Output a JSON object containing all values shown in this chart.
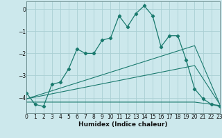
{
  "xlabel": "Humidex (Indice chaleur)",
  "ylabel": "",
  "background_color": "#cce8ec",
  "grid_color": "#aacfd4",
  "line_color": "#1a7a6e",
  "xlim": [
    0,
    23
  ],
  "ylim": [
    -4.7,
    0.35
  ],
  "yticks": [
    0,
    -1,
    -2,
    -3,
    -4
  ],
  "xticks": [
    0,
    1,
    2,
    3,
    4,
    5,
    6,
    7,
    8,
    9,
    10,
    11,
    12,
    13,
    14,
    15,
    16,
    17,
    18,
    19,
    20,
    21,
    22,
    23
  ],
  "series1_x": [
    0,
    1,
    2,
    3,
    4,
    5,
    6,
    7,
    8,
    9,
    10,
    11,
    12,
    13,
    14,
    15,
    16,
    17,
    18,
    19,
    20,
    21,
    22,
    23
  ],
  "series1_y": [
    -3.8,
    -4.3,
    -4.4,
    -3.4,
    -3.3,
    -2.7,
    -1.8,
    -2.0,
    -2.0,
    -1.4,
    -1.3,
    -0.3,
    -0.8,
    -0.2,
    0.15,
    -0.3,
    -1.7,
    -1.2,
    -1.2,
    -2.3,
    -3.6,
    -4.05,
    -4.3,
    -4.4
  ],
  "series2_x": [
    0,
    20,
    23
  ],
  "series2_y": [
    -4.05,
    -1.65,
    -4.3
  ],
  "series3_x": [
    0,
    20,
    23
  ],
  "series3_y": [
    -4.05,
    -2.55,
    -4.3
  ],
  "series4_x": [
    0,
    20,
    23
  ],
  "series4_y": [
    -4.2,
    -4.2,
    -4.35
  ]
}
